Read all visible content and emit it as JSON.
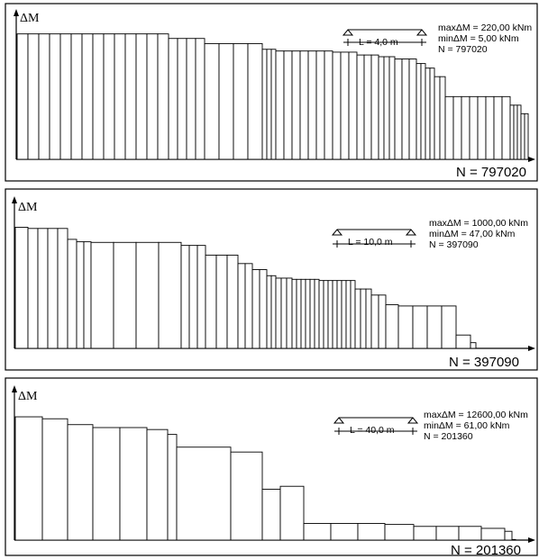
{
  "chart_data": [
    {
      "type": "bar",
      "ylabel": "ΔM",
      "beam_label": "L = 4,0 m",
      "info_lines": [
        "maxΔM = 220,00 kNm",
        "minΔM = 5,00 kNm",
        "N = 797020"
      ],
      "n_label": "N = 797020",
      "segments": [
        {
          "value": 220,
          "width": 12,
          "count": 14
        },
        {
          "value": 212,
          "width": 10,
          "count": 4
        },
        {
          "value": 203,
          "width": 16,
          "count": 4
        },
        {
          "value": 193,
          "width": 5,
          "count": 3
        },
        {
          "value": 190,
          "width": 9,
          "count": 7
        },
        {
          "value": 188,
          "width": 9,
          "count": 3
        },
        {
          "value": 183,
          "width": 8,
          "count": 3
        },
        {
          "value": 180,
          "width": 6,
          "count": 3
        },
        {
          "value": 176,
          "width": 8,
          "count": 3
        },
        {
          "value": 168,
          "width": 5,
          "count": 2
        },
        {
          "value": 160,
          "width": 5,
          "count": 2
        },
        {
          "value": 145,
          "width": 6,
          "count": 2
        },
        {
          "value": 110,
          "width": 9,
          "count": 8
        },
        {
          "value": 95,
          "width": 4,
          "count": 3
        },
        {
          "value": 80,
          "width": 4,
          "count": 2
        },
        {
          "value": 55,
          "width": 4,
          "count": 2
        },
        {
          "value": 30,
          "width": 4,
          "count": 1
        },
        {
          "value": 5,
          "width": 3,
          "count": 1
        }
      ],
      "ylim": [
        0,
        240
      ]
    },
    {
      "type": "bar",
      "ylabel": "ΔM",
      "beam_label": "L = 10,0 m",
      "info_lines": [
        "maxΔM = 1000,00 kNm",
        "minΔM = 47,00 kNm",
        "N = 397090"
      ],
      "n_label": "N = 397090",
      "segments": [
        {
          "value": 1000,
          "width": 14,
          "count": 1
        },
        {
          "value": 990,
          "width": 11,
          "count": 4
        },
        {
          "value": 900,
          "width": 10,
          "count": 1
        },
        {
          "value": 880,
          "width": 8,
          "count": 2
        },
        {
          "value": 875,
          "width": 25,
          "count": 4
        },
        {
          "value": 850,
          "width": 9,
          "count": 3
        },
        {
          "value": 770,
          "width": 12,
          "count": 3
        },
        {
          "value": 700,
          "width": 8,
          "count": 2
        },
        {
          "value": 650,
          "width": 8,
          "count": 2
        },
        {
          "value": 600,
          "width": 5,
          "count": 2
        },
        {
          "value": 580,
          "width": 6,
          "count": 3
        },
        {
          "value": 570,
          "width": 5,
          "count": 6
        },
        {
          "value": 560,
          "width": 5,
          "count": 8
        },
        {
          "value": 490,
          "width": 6,
          "count": 3
        },
        {
          "value": 440,
          "width": 8,
          "count": 2
        },
        {
          "value": 360,
          "width": 14,
          "count": 1
        },
        {
          "value": 350,
          "width": 16,
          "count": 4
        },
        {
          "value": 110,
          "width": 16,
          "count": 1
        },
        {
          "value": 47,
          "width": 6,
          "count": 1
        }
      ],
      "ylim": [
        0,
        1100
      ]
    },
    {
      "type": "bar",
      "ylabel": "ΔM",
      "beam_label": "L = 40,0 m",
      "info_lines": [
        "maxΔM = 12600,00 kNm",
        "minΔM = 61,00 kNm",
        "N = 201360"
      ],
      "n_label": "N = 201360",
      "segments": [
        {
          "value": 12600,
          "width": 30,
          "count": 1
        },
        {
          "value": 12400,
          "width": 28,
          "count": 1
        },
        {
          "value": 11800,
          "width": 28,
          "count": 1
        },
        {
          "value": 11500,
          "width": 30,
          "count": 2
        },
        {
          "value": 11300,
          "width": 23,
          "count": 1
        },
        {
          "value": 10800,
          "width": 10,
          "count": 1
        },
        {
          "value": 9500,
          "width": 60,
          "count": 1
        },
        {
          "value": 9000,
          "width": 35,
          "count": 1
        },
        {
          "value": 5200,
          "width": 20,
          "count": 1
        },
        {
          "value": 5500,
          "width": 26,
          "count": 1
        },
        {
          "value": 1700,
          "width": 30,
          "count": 3
        },
        {
          "value": 1600,
          "width": 32,
          "count": 1
        },
        {
          "value": 1400,
          "width": 25,
          "count": 3
        },
        {
          "value": 1200,
          "width": 26,
          "count": 1
        },
        {
          "value": 900,
          "width": 8,
          "count": 1
        },
        {
          "value": 61,
          "width": 4,
          "count": 1
        }
      ],
      "ylim": [
        0,
        13800
      ]
    }
  ]
}
